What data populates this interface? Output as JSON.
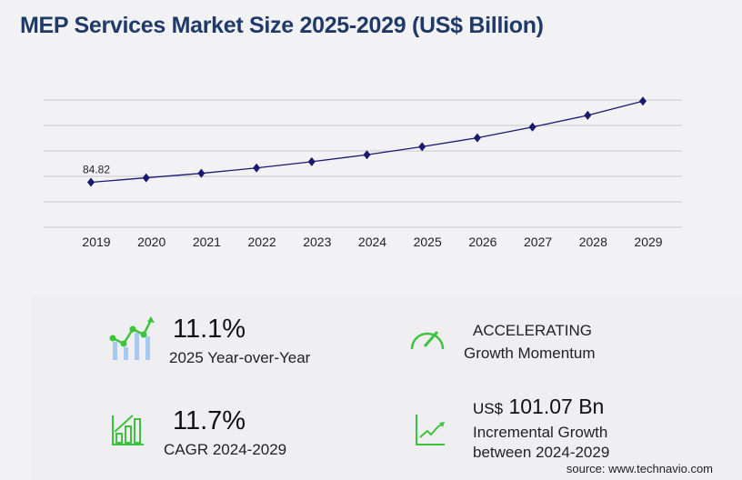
{
  "title": "MEP Services Market Size 2025-2029 (US$ Billion)",
  "chart_data": {
    "type": "line",
    "title": "MEP Services Market Size 2025-2029 (US$ Billion)",
    "categories": [
      "2019",
      "2020",
      "2021",
      "2022",
      "2023",
      "2024",
      "2025",
      "2026",
      "2027",
      "2028",
      "2029"
    ],
    "values": [
      84.82,
      93.3,
      101.7,
      111.9,
      123.7,
      136.7,
      151.9,
      168.7,
      189.0,
      211.0,
      237.8
    ],
    "data_labels": [
      {
        "x": "2019",
        "label": "84.82"
      }
    ],
    "ylim": [
      0,
      240
    ],
    "grid": true,
    "line_color": "#1a1a6e",
    "marker": "diamond"
  },
  "stats": {
    "yoy_value": "11.1%",
    "yoy_label": "2025 Year-over-Year",
    "momentum_value": "ACCELERATING",
    "momentum_label": "Growth Momentum",
    "cagr_value": "11.7%",
    "cagr_label": "CAGR 2024-2029",
    "incremental_prefix": "US$",
    "incremental_value": "101.07 Bn",
    "incremental_label_1": "Incremental Growth",
    "incremental_label_2": "between 2024-2029"
  },
  "colors": {
    "accent_green": "#3cc43c",
    "light_blue": "#a9c8f0",
    "title": "#1f3a68"
  },
  "source": "source: www.technavio.com"
}
